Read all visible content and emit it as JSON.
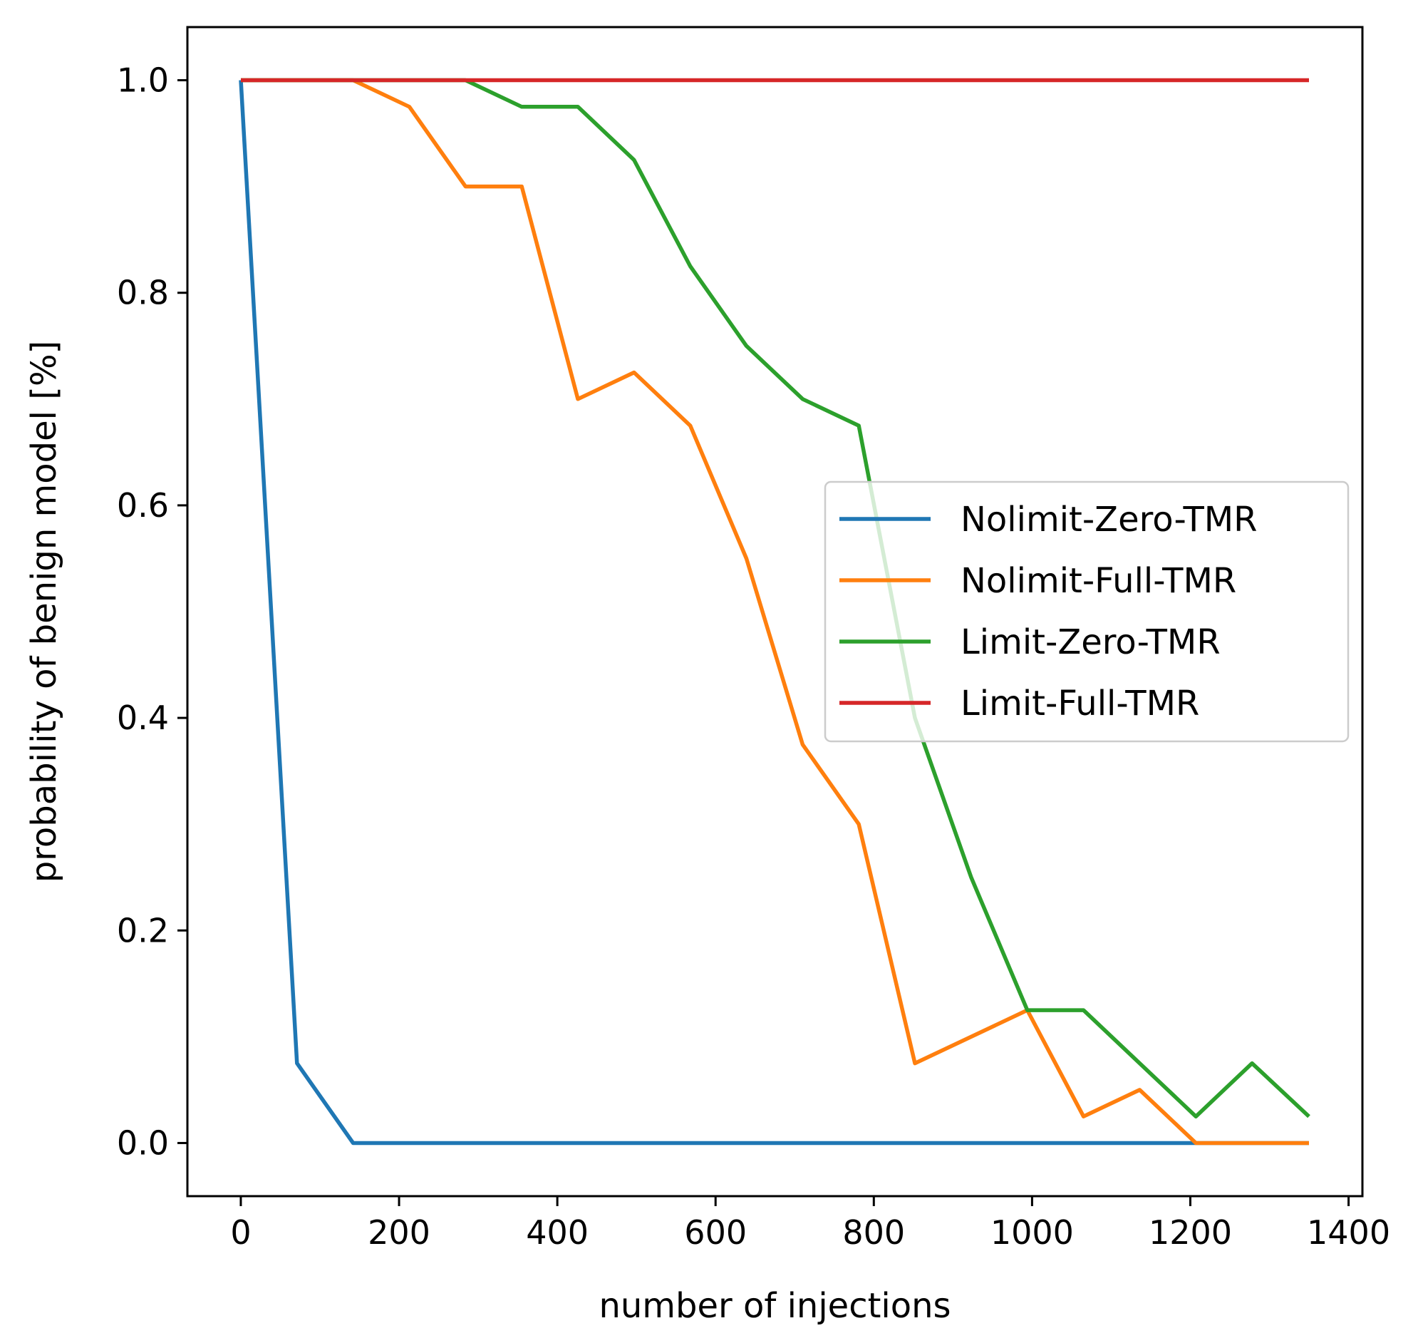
{
  "chart_data": {
    "type": "line",
    "title": "",
    "xlabel": "number of injections",
    "ylabel": "probability of benign model [%]",
    "xlim": [
      -67.5,
      1417.5
    ],
    "ylim": [
      -0.05,
      1.05
    ],
    "xticks": [
      0,
      200,
      400,
      600,
      800,
      1000,
      1200,
      1400
    ],
    "yticks": [
      0.0,
      0.2,
      0.4,
      0.6,
      0.8,
      1.0
    ],
    "xtick_labels": [
      "0",
      "200",
      "400",
      "600",
      "800",
      "1000",
      "1200",
      "1400"
    ],
    "ytick_labels": [
      "0.0",
      "0.2",
      "0.4",
      "0.6",
      "0.8",
      "1.0"
    ],
    "grid": false,
    "legend_position": "center-right",
    "x": [
      0,
      71,
      142,
      213,
      284,
      355,
      426,
      497,
      568,
      639,
      710,
      781,
      852,
      923,
      994,
      1065,
      1136,
      1207,
      1278,
      1350
    ],
    "series": [
      {
        "name": "Nolimit-Zero-TMR",
        "color": "#1f77b4",
        "values": [
          1.0,
          0.075,
          0.0,
          0.0,
          0.0,
          0.0,
          0.0,
          0.0,
          0.0,
          0.0,
          0.0,
          0.0,
          0.0,
          0.0,
          0.0,
          0.0,
          0.0,
          0.0,
          0.0,
          0.0
        ]
      },
      {
        "name": "Nolimit-Full-TMR",
        "color": "#ff7f0e",
        "values": [
          1.0,
          1.0,
          1.0,
          0.975,
          0.9,
          0.9,
          0.7,
          0.725,
          0.675,
          0.55,
          0.375,
          0.3,
          0.075,
          0.1,
          0.125,
          0.025,
          0.05,
          0.0,
          0.0,
          0.0
        ]
      },
      {
        "name": "Limit-Zero-TMR",
        "color": "#2ca02c",
        "values": [
          1.0,
          1.0,
          1.0,
          1.0,
          1.0,
          0.975,
          0.975,
          0.925,
          0.825,
          0.75,
          0.7,
          0.675,
          0.4,
          0.25,
          0.125,
          0.125,
          0.075,
          0.025,
          0.075,
          0.025
        ]
      },
      {
        "name": "Limit-Full-TMR",
        "color": "#d62728",
        "values": [
          1.0,
          1.0,
          1.0,
          1.0,
          1.0,
          1.0,
          1.0,
          1.0,
          1.0,
          1.0,
          1.0,
          1.0,
          1.0,
          1.0,
          1.0,
          1.0,
          1.0,
          1.0,
          1.0,
          1.0
        ]
      }
    ]
  }
}
